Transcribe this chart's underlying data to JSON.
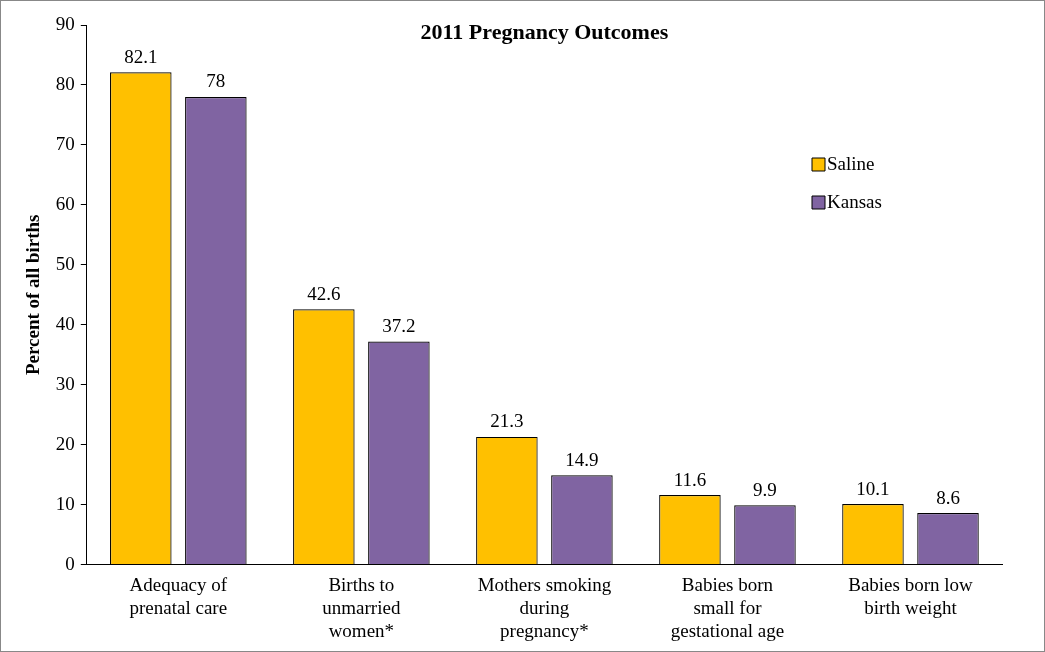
{
  "chart_data": {
    "type": "bar",
    "title": "2011 Pregnancy Outcomes",
    "ylabel": "Percent of all births",
    "categories": [
      "Adequacy of prenatal care",
      "Births to unmarried women*",
      "Mothers smoking during pregnancy*",
      "Babies born small for gestational age",
      "Babies born low birth weight"
    ],
    "series": [
      {
        "name": "Saline",
        "color": "#ffc000",
        "values": [
          82.1,
          42.6,
          21.3,
          11.6,
          10.1
        ]
      },
      {
        "name": "Kansas",
        "color": "#8064a2",
        "values": [
          78,
          37.2,
          14.9,
          9.9,
          8.6
        ]
      }
    ],
    "ylim": [
      0,
      90
    ],
    "yticks": [
      0,
      10,
      20,
      30,
      40,
      50,
      60,
      70,
      80,
      90
    ],
    "grid": false,
    "legend": "top right",
    "data_labels": true
  }
}
